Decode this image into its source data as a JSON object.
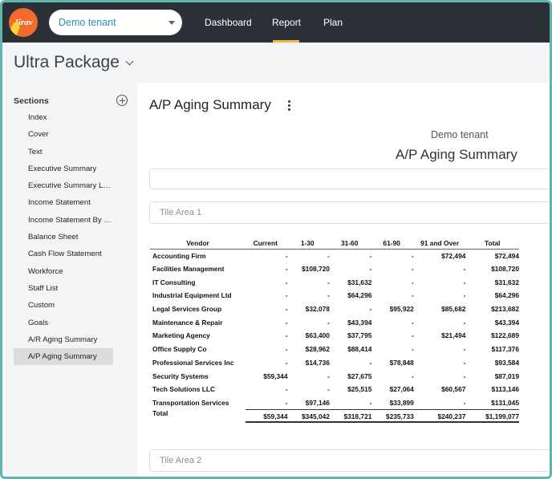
{
  "app": {
    "logo_text": "Jirav"
  },
  "tenant_select": {
    "value": "Demo tenant"
  },
  "nav": {
    "dashboard": "Dashboard",
    "report": "Report",
    "plan": "Plan",
    "active": "Report"
  },
  "page": {
    "title": "Ultra Package"
  },
  "sidebar": {
    "label": "Sections",
    "items": [
      {
        "label": "Index"
      },
      {
        "label": "Cover"
      },
      {
        "label": "Text"
      },
      {
        "label": "Executive Summary"
      },
      {
        "label": "Executive Summary La..."
      },
      {
        "label": "Income Statement"
      },
      {
        "label": "Income Statement By D..."
      },
      {
        "label": "Balance Sheet"
      },
      {
        "label": "Cash Flow Statement"
      },
      {
        "label": "Workforce"
      },
      {
        "label": "Staff List"
      },
      {
        "label": "Custom"
      },
      {
        "label": "Goals"
      },
      {
        "label": "A/R Aging Summary"
      },
      {
        "label": "A/P Aging Summary"
      }
    ],
    "active_index": 14
  },
  "report": {
    "title": "A/P Aging Summary",
    "header_tenant": "Demo tenant",
    "header_title": "A/P Aging Summary",
    "tile1": "Tile Area 1",
    "tile2": "Tile Area 2"
  },
  "table": {
    "columns": [
      "Vendor",
      "Current",
      "1-30",
      "31-60",
      "61-90",
      "91 and Over",
      "Total"
    ],
    "rows": [
      [
        "Accounting Firm",
        "-",
        "-",
        "-",
        "-",
        "$72,494",
        "$72,494"
      ],
      [
        "Facilities Management",
        "-",
        "$108,720",
        "-",
        "-",
        "-",
        "$108,720"
      ],
      [
        "IT Consulting",
        "-",
        "-",
        "$31,632",
        "-",
        "-",
        "$31,632"
      ],
      [
        "Industrial Equipment Ltd",
        "-",
        "-",
        "$64,296",
        "-",
        "-",
        "$64,296"
      ],
      [
        "Legal Services Group",
        "-",
        "$32,078",
        "-",
        "$95,922",
        "$85,682",
        "$213,682"
      ],
      [
        "Maintenance & Repair",
        "-",
        "-",
        "$43,394",
        "-",
        "-",
        "$43,394"
      ],
      [
        "Marketing Agency",
        "-",
        "$63,400",
        "$37,795",
        "-",
        "$21,494",
        "$122,689"
      ],
      [
        "Office Supply Co",
        "-",
        "$28,962",
        "$88,414",
        "-",
        "-",
        "$117,376"
      ],
      [
        "Professional Services Inc",
        "-",
        "$14,736",
        "-",
        "$78,848",
        "-",
        "$93,584"
      ],
      [
        "Security Systems",
        "$59,344",
        "-",
        "$27,675",
        "-",
        "-",
        "$87,019"
      ],
      [
        "Tech Solutions LLC",
        "-",
        "-",
        "$25,515",
        "$27,064",
        "$60,567",
        "$113,146"
      ],
      [
        "Transportation Services",
        "-",
        "$97,146",
        "-",
        "$33,899",
        "-",
        "$131,045"
      ]
    ],
    "total": [
      "Total",
      "$59,344",
      "$345,042",
      "$318,721",
      "$235,733",
      "$240,237",
      "$1,199,077"
    ]
  },
  "colors": {
    "topbar": "#2c3138",
    "accent": "#f6b73c",
    "logo": "#f26b2a",
    "tenant_text": "#2a8cc4",
    "frame": "#5fb8b0"
  }
}
